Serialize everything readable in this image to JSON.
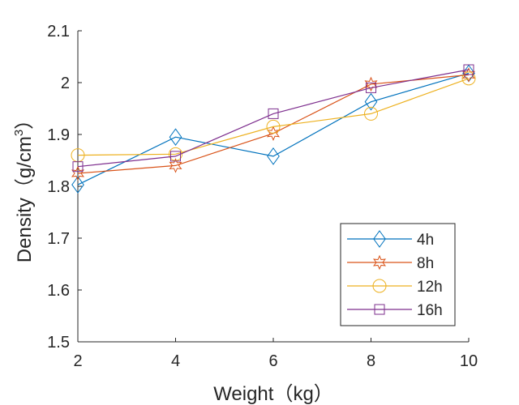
{
  "chart_data": {
    "type": "line",
    "title": "",
    "xlabel": "Weight（kg）",
    "ylabel_main": "Density（g/cm",
    "ylabel_sup": "3",
    "ylabel_close": "）",
    "xlim": [
      2,
      10
    ],
    "ylim": [
      1.5,
      2.1
    ],
    "xticks": [
      2,
      4,
      6,
      8,
      10
    ],
    "xtick_labels": [
      "2",
      "4",
      "6",
      "8",
      "10"
    ],
    "yticks": [
      1.5,
      1.6,
      1.7,
      1.8,
      1.9,
      2.0,
      2.1
    ],
    "ytick_labels": [
      "1.5",
      "1.6",
      "1.7",
      "1.8",
      "1.9",
      "2",
      "2.1"
    ],
    "x": [
      2,
      4,
      6,
      8,
      10
    ],
    "legend_position": "bottom-right",
    "grid": false,
    "series": [
      {
        "name": "4h",
        "marker": "diamond",
        "color": "#0072BD",
        "values": [
          1.803,
          1.895,
          1.858,
          1.963,
          2.018
        ]
      },
      {
        "name": "8h",
        "marker": "hexagram",
        "color": "#D95319",
        "values": [
          1.825,
          1.84,
          1.902,
          1.997,
          2.015
        ]
      },
      {
        "name": "12h",
        "marker": "circle",
        "color": "#EDB120",
        "values": [
          1.86,
          1.862,
          1.915,
          1.94,
          2.008
        ]
      },
      {
        "name": "16h",
        "marker": "square",
        "color": "#7E2F8E",
        "values": [
          1.838,
          1.858,
          1.94,
          1.99,
          2.025
        ]
      }
    ]
  }
}
